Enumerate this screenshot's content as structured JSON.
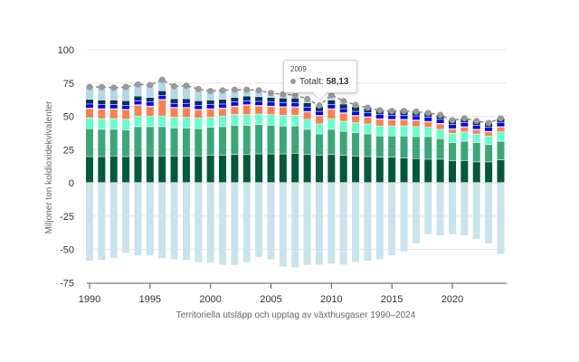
{
  "chart_data": {
    "type": "bar",
    "stacked": true,
    "xlabel": "Territoriella utsläpp och upptag av växthusgaser 1990–2024",
    "ylabel": "Miljoner ton koldioxidekvivalenter",
    "ylim": [
      -75,
      100
    ],
    "yticks": [
      -75,
      -50,
      -25,
      0,
      25,
      50,
      75,
      100
    ],
    "xticks": [
      1990,
      1995,
      2000,
      2005,
      2010,
      2015,
      2020
    ],
    "grid": true,
    "x": [
      1990,
      1991,
      1992,
      1993,
      1994,
      1995,
      1996,
      1997,
      1998,
      1999,
      2000,
      2001,
      2002,
      2003,
      2004,
      2005,
      2006,
      2007,
      2008,
      2009,
      2010,
      2011,
      2012,
      2013,
      2014,
      2015,
      2016,
      2017,
      2018,
      2019,
      2020,
      2021,
      2022,
      2023,
      2024
    ],
    "series": [
      {
        "color": "#00593a",
        "values": [
          19.5,
          19.5,
          20,
          19.5,
          20,
          20,
          20,
          20,
          20,
          20,
          20.5,
          20.5,
          21,
          21,
          21.5,
          21.5,
          21.5,
          22,
          21,
          20.5,
          21,
          20.5,
          20,
          19.5,
          19,
          19,
          18.5,
          18,
          17.5,
          17.5,
          16.5,
          16.5,
          15.5,
          15.5,
          17
        ]
      },
      {
        "color": "#3aa876",
        "values": [
          21,
          20.5,
          20,
          20,
          22,
          22,
          22,
          21,
          21,
          20.5,
          21,
          21.5,
          22,
          22,
          22,
          21.5,
          21,
          20.5,
          19,
          16,
          19,
          18,
          17.5,
          17,
          16,
          16,
          16.5,
          16.5,
          17,
          15.5,
          13.5,
          14.5,
          14.5,
          13,
          14
        ]
      },
      {
        "color": "#66ffcc",
        "values": [
          8,
          8,
          8,
          8,
          8,
          8,
          8,
          8,
          8,
          8,
          7.5,
          8,
          8,
          8,
          8,
          8,
          8,
          8,
          7.5,
          7.5,
          8,
          7.5,
          7.5,
          7.5,
          7.5,
          7.5,
          7.5,
          7.5,
          7,
          7,
          7,
          7,
          6.5,
          6.5,
          7
        ]
      },
      {
        "color": "#ff7f50",
        "values": [
          7,
          7,
          7,
          7,
          8,
          7,
          12,
          7,
          7,
          6,
          6,
          5.5,
          6,
          7,
          6,
          6,
          6,
          6,
          5.5,
          6,
          7,
          6,
          5,
          5,
          5,
          4.5,
          4.5,
          4.5,
          4,
          4,
          3,
          3.5,
          3,
          3,
          3.5
        ]
      },
      {
        "color": "#c8a040",
        "values": [
          0.5,
          0.5,
          0.5,
          0.5,
          0.5,
          0.5,
          0.5,
          0.5,
          0.5,
          0.5,
          0.5,
          0.5,
          0.5,
          0.5,
          0.5,
          0.5,
          0.5,
          0.5,
          0.5,
          0.5,
          0.5,
          0.5,
          0.5,
          0.5,
          0.5,
          0.5,
          0.5,
          0.5,
          0.5,
          0.5,
          0.5,
          0.5,
          0.5,
          0.5,
          0.5
        ]
      },
      {
        "color": "#0000ff",
        "values": [
          3,
          3,
          3,
          3,
          3,
          3,
          3,
          3,
          3,
          3,
          3,
          3,
          3,
          3,
          3,
          3,
          3,
          3,
          3,
          3,
          3,
          3,
          3,
          3,
          3,
          3,
          3,
          3,
          3,
          3,
          3,
          3,
          3,
          3,
          3
        ]
      },
      {
        "color": "#00305e",
        "values": [
          3.5,
          3.5,
          3.5,
          3.5,
          3.5,
          3.5,
          3.5,
          3.5,
          3.5,
          3.5,
          3.5,
          3.5,
          3.5,
          3.5,
          3.5,
          3.5,
          3.5,
          3.5,
          3.5,
          3.5,
          3.5,
          3.5,
          3.5,
          3.5,
          3.5,
          3.5,
          3.5,
          3.5,
          3.5,
          3.5,
          3.5,
          3.5,
          3.5,
          3.5,
          3.5
        ]
      },
      {
        "color": "#b0d8e6",
        "values": [
          9.5,
          10,
          9.5,
          10.5,
          9,
          9.5,
          8.5,
          9.5,
          10,
          9,
          7,
          7,
          6,
          5,
          5,
          3.5,
          3,
          2.5,
          3,
          1.13,
          4,
          2.5,
          1.5,
          0.5,
          0,
          0,
          0,
          0,
          0,
          0,
          0,
          0,
          0,
          0,
          0
        ]
      },
      {
        "color": "#c9e3ec",
        "values": [
          -59,
          -58.5,
          -57,
          -53,
          -55,
          -55,
          -57,
          -58,
          -58.5,
          -60,
          -60.5,
          -62,
          -62,
          -60,
          -56,
          -58,
          -63.5,
          -64,
          -62,
          -62,
          -61,
          -62,
          -60,
          -59,
          -58,
          -55,
          -52,
          -46,
          -39,
          -40,
          -39,
          -40,
          -42.5,
          -46,
          -54
        ]
      }
    ],
    "total": {
      "name": "Totalt",
      "color": "#999999",
      "values": [
        72,
        72,
        71.5,
        72,
        74,
        73.5,
        77.5,
        72.5,
        73,
        70.5,
        69,
        69.5,
        70,
        70,
        69.5,
        67.5,
        66.5,
        66,
        63,
        58.13,
        66,
        61.5,
        58.5,
        56.5,
        54.5,
        54,
        54,
        53.5,
        52.5,
        51,
        47,
        48.5,
        46.5,
        45,
        48.5
      ]
    },
    "tooltip": {
      "year": "2009",
      "label": "Totalt:",
      "value": "58,13"
    }
  }
}
